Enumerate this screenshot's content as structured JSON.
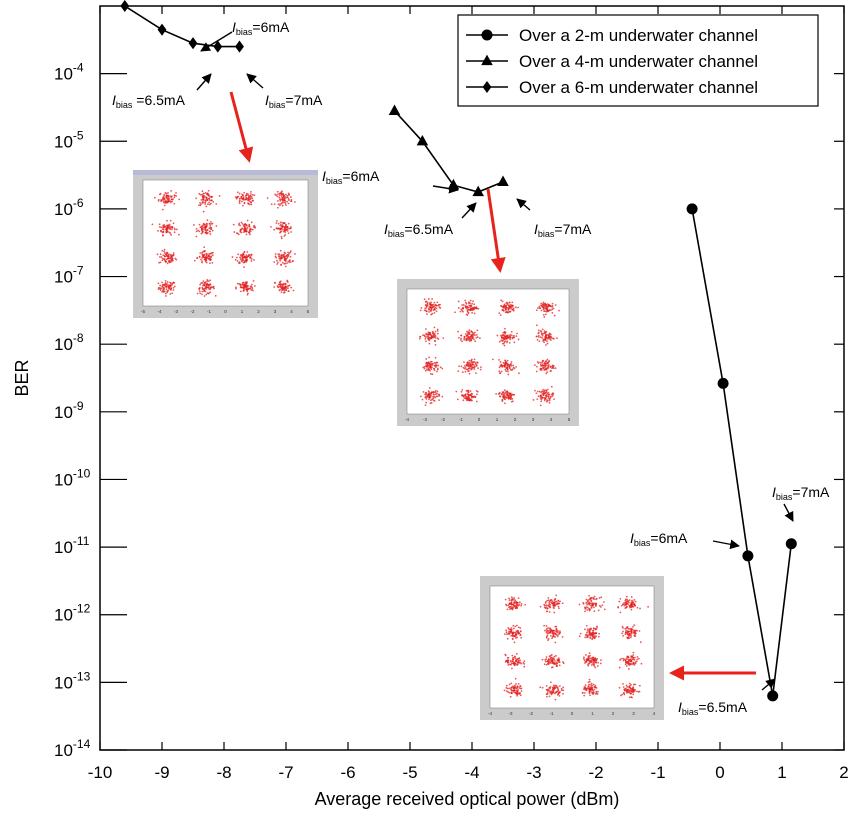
{
  "chart_data": {
    "type": "line",
    "xlabel": "Average received optical power (dBm)",
    "ylabel": "BER",
    "xlim": [
      -10,
      2
    ],
    "ylim_log10": [
      -14,
      -3
    ],
    "y_scale": "log",
    "x_ticks": [
      "-10",
      "-9",
      "-8",
      "-7",
      "-6",
      "-5",
      "-4",
      "-3",
      "-2",
      "-1",
      "0",
      "1",
      "2"
    ],
    "y_ticks": [
      {
        "base": "10",
        "exp": "-4",
        "value": -4
      },
      {
        "base": "10",
        "exp": "-5",
        "value": -5
      },
      {
        "base": "10",
        "exp": "-6",
        "value": -6
      },
      {
        "base": "10",
        "exp": "-7",
        "value": -7
      },
      {
        "base": "10",
        "exp": "-8",
        "value": -8
      },
      {
        "base": "10",
        "exp": "-9",
        "value": -9
      },
      {
        "base": "10",
        "exp": "-10",
        "value": -10
      },
      {
        "base": "10",
        "exp": "-11",
        "value": -11
      },
      {
        "base": "10",
        "exp": "-12",
        "value": -12
      },
      {
        "base": "10",
        "exp": "-13",
        "value": -13
      },
      {
        "base": "10",
        "exp": "-14",
        "value": -14
      }
    ],
    "legend_position": "top-right",
    "grid": false,
    "series": [
      {
        "name": "Over a 2-m underwater channel",
        "marker": "circle",
        "x": [
          -0.45,
          0.05,
          0.45,
          0.85,
          1.15
        ],
        "log10_y": [
          -6.0,
          -8.58,
          -11.13,
          -13.2,
          -10.95
        ]
      },
      {
        "name": "Over a 4-m underwater channel",
        "marker": "triangle",
        "x": [
          -5.25,
          -4.8,
          -4.3,
          -3.9,
          -3.5
        ],
        "log10_y": [
          -4.55,
          -5.0,
          -5.65,
          -5.75,
          -5.6
        ]
      },
      {
        "name": "Over a 6-m underwater channel",
        "marker": "diamond",
        "x": [
          -9.6,
          -9.0,
          -8.5,
          -8.1,
          -7.75
        ],
        "log10_y": [
          -3.0,
          -3.35,
          -3.55,
          -3.6,
          -3.6
        ]
      }
    ],
    "annotations": [
      {
        "italic": "I",
        "sub": "bias",
        "text": "=6mA",
        "series": "6-m"
      },
      {
        "italic": "I",
        "sub": "bias",
        "text": " =6.5mA",
        "series": "6-m"
      },
      {
        "italic": "I",
        "sub": "bias",
        "text": "=7mA",
        "series": "6-m"
      },
      {
        "italic": "I",
        "sub": "bias",
        "text": "=6mA",
        "series": "4-m"
      },
      {
        "italic": "I",
        "sub": "bias",
        "text": "=6.5mA",
        "series": "4-m"
      },
      {
        "italic": "I",
        "sub": "bias",
        "text": "=7mA",
        "series": "4-m"
      },
      {
        "italic": "I",
        "sub": "bias",
        "text": "=7mA",
        "series": "2-m"
      },
      {
        "italic": "I",
        "sub": "bias",
        "text": "=6mA",
        "series": "2-m"
      },
      {
        "italic": "I",
        "sub": "bias",
        "text": "=6.5mA",
        "series": "2-m"
      }
    ],
    "insets": [
      {
        "name": "constellation-6m",
        "tick_labels": [
          "-5",
          "-4",
          "-3",
          "-2",
          "-1",
          "0",
          "1",
          "2",
          "3",
          "4",
          "5"
        ]
      },
      {
        "name": "constellation-4m",
        "tick_labels": [
          "-4",
          "-3",
          "-2",
          "-1",
          "0",
          "1",
          "2",
          "3",
          "4",
          "5"
        ]
      },
      {
        "name": "constellation-2m",
        "tick_labels": [
          "-4",
          "-3",
          "-2",
          "-1",
          "0",
          "1",
          "2",
          "3",
          "4"
        ]
      }
    ],
    "colors": {
      "line": "#000000",
      "arrow_red": "#e8231c",
      "constellation": "#e32020",
      "inset_frame": "#c8c8c8"
    }
  }
}
